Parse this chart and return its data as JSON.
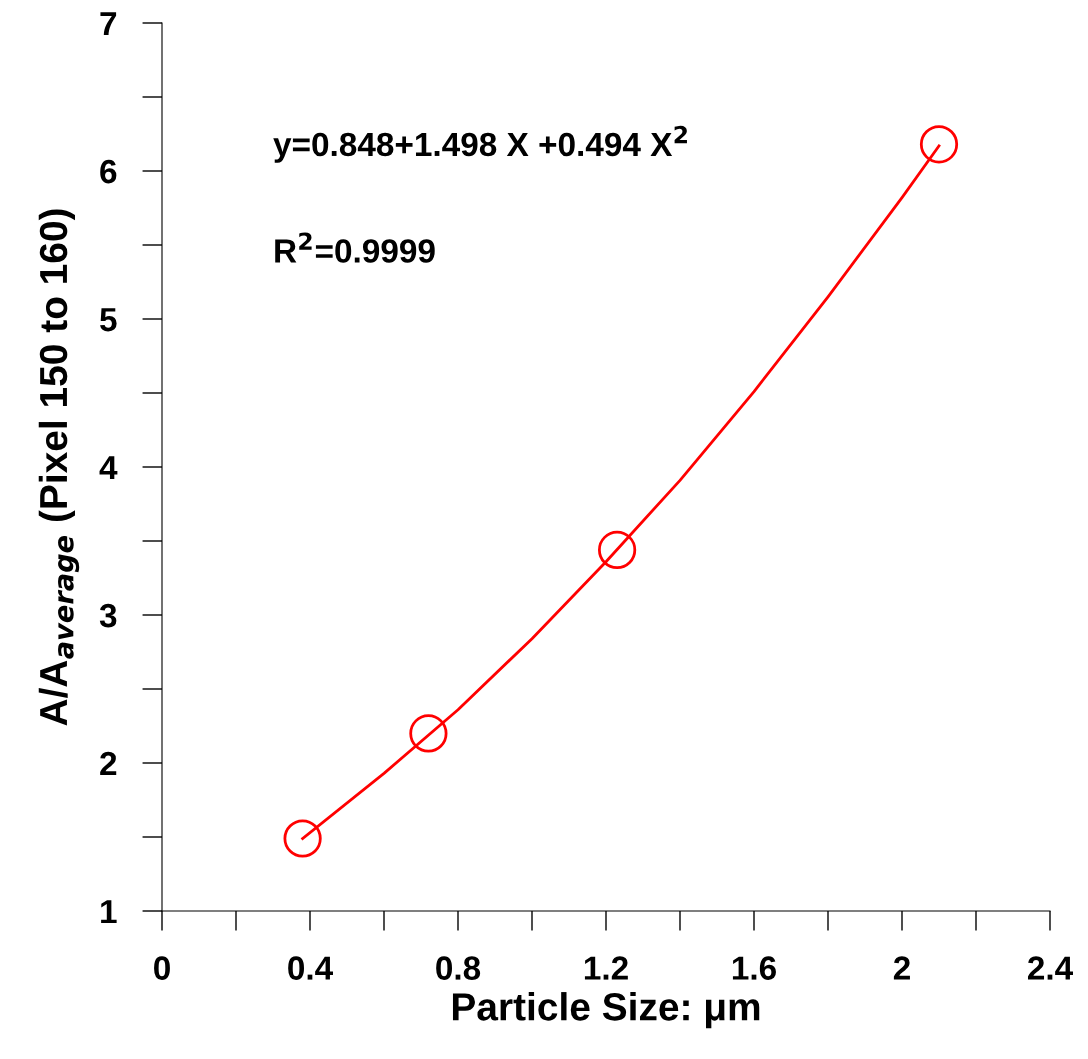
{
  "chart_data": {
    "type": "scatter",
    "xlabel": "Particle Size: μm",
    "ylabel": "A/A$_{average}$ (Pixel 150 to 160)",
    "xlim": [
      0,
      2.4
    ],
    "ylim": [
      1,
      7
    ],
    "xticks": [
      0,
      0.4,
      0.8,
      1.2,
      1.6,
      2,
      2.4
    ],
    "yticks": [
      1,
      2,
      3,
      4,
      5,
      6,
      7
    ],
    "grid": false,
    "legend": false,
    "series": [
      {
        "marker": "circle",
        "color": "#ff0000",
        "x": [
          0.38,
          0.72,
          1.23,
          2.1
        ],
        "values": [
          1.49,
          2.2,
          3.44,
          6.18
        ]
      },
      {
        "type": "line",
        "marker": "none",
        "line_style": "solid",
        "color": "#ff0000",
        "x": [
          0.38,
          0.6,
          0.8,
          1.0,
          1.2,
          1.4,
          1.6,
          1.8,
          2.0,
          2.1
        ],
        "values": [
          1.49,
          1.93,
          2.36,
          2.84,
          3.36,
          3.91,
          4.51,
          5.15,
          5.82,
          6.17
        ]
      }
    ],
    "annotations": [
      "y=0.848+1.498 X +0.494 X$^{2}$",
      "R$^{2}$=0.9999"
    ]
  }
}
